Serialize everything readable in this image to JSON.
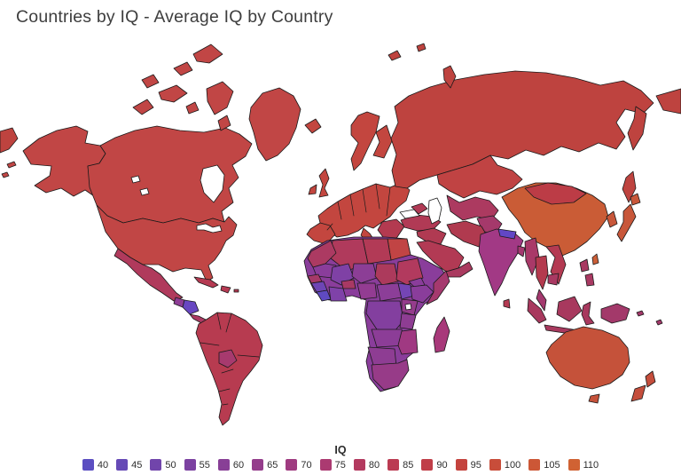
{
  "title": "Countries by IQ - Average IQ by Country",
  "legend": {
    "title": "IQ",
    "bins": [
      {
        "label": "40",
        "color": "#5B4EC1"
      },
      {
        "label": "45",
        "color": "#664AB6"
      },
      {
        "label": "50",
        "color": "#7145AB"
      },
      {
        "label": "55",
        "color": "#7C42A1"
      },
      {
        "label": "60",
        "color": "#883F96"
      },
      {
        "label": "65",
        "color": "#943D8B"
      },
      {
        "label": "70",
        "color": "#9F3B80"
      },
      {
        "label": "75",
        "color": "#AB3A71"
      },
      {
        "label": "80",
        "color": "#B33A5F"
      },
      {
        "label": "85",
        "color": "#BB3B52"
      },
      {
        "label": "90",
        "color": "#C03E48"
      },
      {
        "label": "95",
        "color": "#C4433E"
      },
      {
        "label": "100",
        "color": "#C84D3A"
      },
      {
        "label": "105",
        "color": "#CC5736"
      },
      {
        "label": "110",
        "color": "#D06233"
      }
    ]
  },
  "chart_data": {
    "type": "choropleth",
    "title": "Countries by IQ - Average IQ by Country",
    "legend_title": "IQ",
    "bins": [
      40,
      45,
      50,
      55,
      60,
      65,
      70,
      75,
      80,
      85,
      90,
      95,
      100,
      105,
      110
    ],
    "legend_position": "bottom-center"
  },
  "map": {
    "ocean": "#FFFFFF",
    "border": "#1A1A1A",
    "regions": {
      "alaska": "#C14645",
      "canada": "#C14645",
      "canada-arctic": "#C14645",
      "greenland": "#C14645",
      "usa": "#C14645",
      "mexico": "#B03A5C",
      "guatemala": "#8E3D96",
      "honduras-nicaragua": "#6847C2",
      "costa-rica-panama": "#AC3A62",
      "cuba": "#B53A52",
      "hispaniola": "#B53A52",
      "south-america": "#B73B50",
      "bolivia": "#A73A6E",
      "iceland": "#C3463F",
      "uk": "#C3463F",
      "ireland": "#C3463F",
      "scandinavia": "#C3463F",
      "finland": "#C3463F",
      "europe": "#C3463F",
      "iberia": "#C3463F",
      "italy": "#C3463F",
      "balkans": "#B33A50",
      "russia": "#BE433F",
      "kazakhstan": "#C04343",
      "central-asia": "#AC3A60",
      "afghanistan": "#A5396B",
      "pakistan": "#A83973",
      "caucasus": "#B13A55",
      "turkey": "#B13A55",
      "levant-iraq": "#B03A52",
      "saudi-arabia": "#B23A54",
      "yemen-oman": "#AA3A5F",
      "iran": "#B03A4F",
      "africa-base": "#8A3D9B",
      "egypt": "#C14444",
      "libya": "#B23A56",
      "algeria": "#B03A5C",
      "morocco": "#AC3A62",
      "mauritania": "#8A3D9B",
      "mali": "#7F41A5",
      "niger": "#8C3E96",
      "chad": "#AC3A5C",
      "sudan": "#B23A5E",
      "senegal": "#A53968",
      "guinea": "#6E45B5",
      "sierra-leone-liberia": "#5F4AC2",
      "burkina-faso": "#A83964",
      "ghana-ivory-coast": "#7F42A8",
      "nigeria": "#933C92",
      "cameroon-car": "#8C3E98",
      "south-sudan": "#7445B5",
      "ethiopia": "#8A3D9B",
      "eritrea": "#8A3D9B",
      "somalia": "#A5396E",
      "kenya-uganda": "#953C8C",
      "drc": "#833F9F",
      "tanzania": "#8E3D93",
      "angola-zambia": "#8C3D97",
      "mozambique-zimbabwe": "#A03982",
      "namibia-botswana": "#8E3D93",
      "south-africa": "#973B88",
      "madagascar": "#A8397A",
      "india": "#A23985",
      "nepal": "#6247C5",
      "bangladesh": "#A53970",
      "sri-lanka": "#B43A52",
      "china": "#CA5C36",
      "mongolia": "#BC3C46",
      "korea": "#C8573A",
      "japan": "#C8573A",
      "taiwan": "#CC5F38",
      "myanmar": "#A93968",
      "thailand": "#B43A4E",
      "vietnam-laos": "#B43A52",
      "cambodia": "#A93962",
      "malaysia": "#A4396E",
      "philippines": "#A93962",
      "borneo": "#A8395E",
      "sumatra": "#A8395E",
      "java": "#A8395E",
      "sulawesi": "#A8395E",
      "new-guinea": "#A3396A",
      "australia": "#C5523A",
      "tasmania": "#C5523A",
      "new-zealand": "#C54E3C",
      "water": "#FFFFFF"
    }
  }
}
